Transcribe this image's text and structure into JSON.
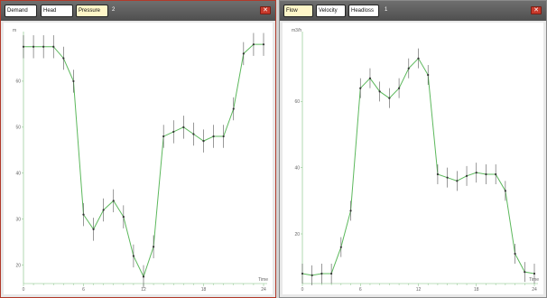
{
  "panels": [
    {
      "tabs": [
        {
          "label": "Demand",
          "active": false
        },
        {
          "label": "Head",
          "active": false
        },
        {
          "label": "Pressure",
          "active": true
        }
      ],
      "tab_count": "2",
      "close_icon": "close-icon",
      "accent": "#5cb85c"
    },
    {
      "tabs": [
        {
          "label": "Flow",
          "active": true
        },
        {
          "label": "Velocity",
          "active": false
        },
        {
          "label": "Headloss",
          "active": false
        }
      ],
      "tab_count": "1",
      "close_icon": "close-icon",
      "accent": "#5cb85c"
    }
  ],
  "chart_data": [
    {
      "type": "line",
      "ylabel": "m",
      "xlabel": "Time",
      "x_ticks": [
        "0",
        "6",
        "12",
        "18",
        "24"
      ],
      "y_ticks": [
        "20",
        "30",
        "40",
        "50",
        "60"
      ],
      "xlim": [
        0,
        24
      ],
      "ylim": [
        16,
        70
      ],
      "series": [
        {
          "color": "#5cb85c",
          "x": [
            0,
            1,
            2,
            3,
            4,
            5,
            6,
            7,
            8,
            9,
            10,
            11,
            12,
            13,
            14,
            15,
            16,
            17,
            18,
            19,
            20,
            21,
            22,
            23,
            24
          ],
          "y": [
            67.5,
            67.5,
            67.5,
            67.5,
            65,
            60,
            31,
            27.8,
            32,
            34,
            30.5,
            22,
            17.5,
            24,
            48,
            49,
            50,
            48.5,
            47,
            48,
            48,
            54,
            66,
            68,
            68
          ],
          "error": 2.5
        }
      ]
    },
    {
      "type": "line",
      "ylabel": "m3/h",
      "xlabel": "Time",
      "x_ticks": [
        "0",
        "6",
        "12",
        "18",
        "24"
      ],
      "y_ticks": [
        "20",
        "40",
        "60"
      ],
      "xlim": [
        0,
        24
      ],
      "ylim": [
        5,
        80
      ],
      "series": [
        {
          "color": "#5cb85c",
          "x": [
            0,
            1,
            2,
            3,
            4,
            5,
            6,
            7,
            8,
            9,
            10,
            11,
            12,
            13,
            14,
            15,
            16,
            17,
            18,
            19,
            20,
            21,
            22,
            23,
            24
          ],
          "y": [
            8,
            7.5,
            8,
            8,
            16,
            27,
            64,
            67,
            63,
            61,
            64,
            70,
            73,
            68,
            38,
            37,
            36,
            37.5,
            38.5,
            38,
            38,
            33,
            14,
            8.5,
            8
          ],
          "error": 3
        }
      ]
    }
  ]
}
